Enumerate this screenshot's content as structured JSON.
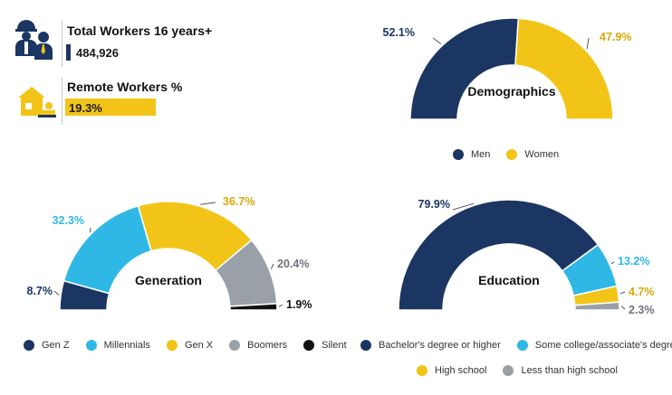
{
  "stats": {
    "total_workers": {
      "title": "Total Workers 16 years+",
      "value": "484,926"
    },
    "remote_workers": {
      "title": "Remote Workers %",
      "value": "19.3%",
      "percent": 19.3
    }
  },
  "colors": {
    "navy": "#1c3663",
    "yellow": "#f2c418",
    "cyan": "#2fb8e6",
    "gray": "#9aa0a8",
    "black": "#111111"
  },
  "chart_data": [
    {
      "type": "pie",
      "title": "Demographics",
      "series": [
        {
          "name": "Men",
          "value": 52.1,
          "label": "52.1%",
          "color": "#1c3663"
        },
        {
          "name": "Women",
          "value": 47.9,
          "label": "47.9%",
          "color": "#f2c418"
        }
      ]
    },
    {
      "type": "pie",
      "title": "Generation",
      "series": [
        {
          "name": "Gen Z",
          "value": 8.7,
          "label": "8.7%",
          "color": "#1c3663"
        },
        {
          "name": "Millennials",
          "value": 32.3,
          "label": "32.3%",
          "color": "#2fb8e6"
        },
        {
          "name": "Gen X",
          "value": 36.7,
          "label": "36.7%",
          "color": "#f2c418"
        },
        {
          "name": "Boomers",
          "value": 20.4,
          "label": "20.4%",
          "color": "#9aa0a8"
        },
        {
          "name": "Silent",
          "value": 1.9,
          "label": "1.9%",
          "color": "#111111"
        }
      ]
    },
    {
      "type": "pie",
      "title": "Education",
      "series": [
        {
          "name": "Bachelor's degree or higher",
          "value": 79.9,
          "label": "79.9%",
          "color": "#1c3663"
        },
        {
          "name": "Some college/associate's degree",
          "value": 13.2,
          "label": "13.2%",
          "color": "#2fb8e6"
        },
        {
          "name": "High school",
          "value": 4.7,
          "label": "4.7%",
          "color": "#f2c418"
        },
        {
          "name": "Less than high school",
          "value": 2.3,
          "label": "2.3%",
          "color": "#9aa0a8"
        }
      ]
    }
  ]
}
